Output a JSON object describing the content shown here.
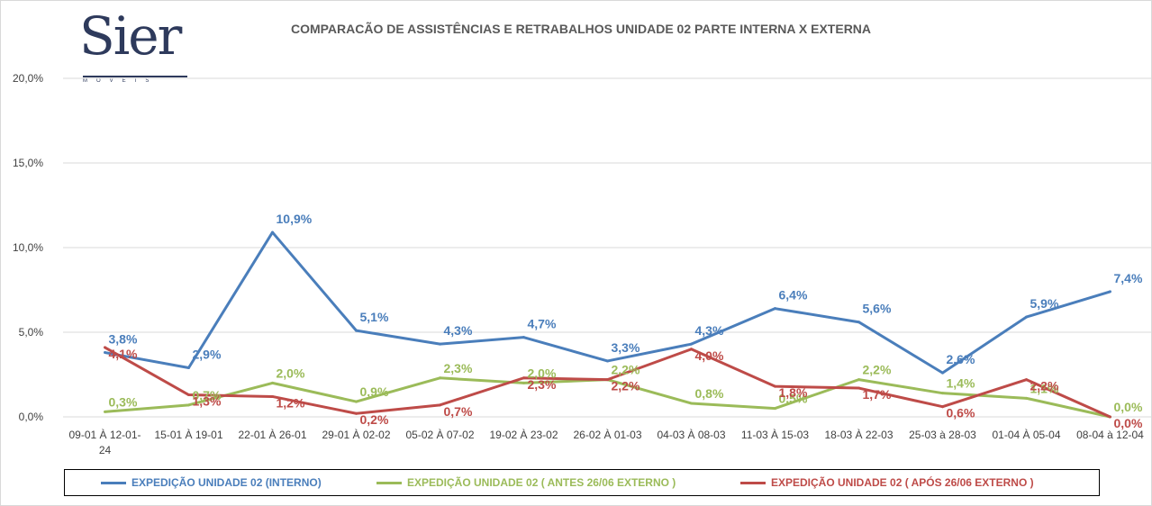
{
  "logo": {
    "text": "Sier",
    "subtext": "MÓVEIS"
  },
  "colors": {
    "interno": "#4a7ebb",
    "antes": "#9bbb59",
    "apos": "#be4b48",
    "grid": "#d9d9d9",
    "axis_text": "#404040"
  },
  "legend": {
    "interno": "EXPEDIÇÃO UNIDADE 02 (INTERNO)",
    "antes": "EXPEDIÇÃO UNIDADE 02 ( ANTES 26/06 EXTERNO )",
    "apos": "EXPEDIÇÃO UNIDADE 02 ( APÓS 26/06 EXTERNO )"
  },
  "chart_data": {
    "type": "line",
    "title": "COMPARACÃO DE ASSISTÊNCIAS E RETRABALHOS UNIDADE 02 PARTE INTERNA X EXTERNA",
    "categories": [
      "09-01 À 12-01-24",
      "15-01 À 19-01",
      "22-01 À 26-01",
      "29-01 À 02-02",
      "05-02 À 07-02",
      "19-02 À 23-02",
      "26-02 À 01-03",
      "04-03 À 08-03",
      "11-03 À 15-03",
      "18-03 À 22-03",
      "25-03 à 28-03",
      "01-04 À 05-04",
      "08-04 à 12-04"
    ],
    "y_ticks": [
      "0,0%",
      "5,0%",
      "10,0%",
      "15,0%",
      "20,0%"
    ],
    "ylim": [
      0,
      20
    ],
    "grid": true,
    "legend_position": "bottom",
    "series": [
      {
        "name": "EXPEDIÇÃO UNIDADE 02 (INTERNO)",
        "color": "#4a7ebb",
        "values": [
          3.8,
          2.9,
          10.9,
          5.1,
          4.3,
          4.7,
          3.3,
          4.3,
          6.4,
          5.6,
          2.6,
          5.9,
          7.4
        ],
        "labels": [
          "3,8%",
          "2,9%",
          "10,9%",
          "5,1%",
          "4,3%",
          "4,7%",
          "3,3%",
          "4,3%",
          "6,4%",
          "5,6%",
          "2,6%",
          "5,9%",
          "7,4%"
        ]
      },
      {
        "name": "EXPEDIÇÃO UNIDADE 02 ( ANTES 26/06 EXTERNO )",
        "color": "#9bbb59",
        "values": [
          0.3,
          0.7,
          2.0,
          0.9,
          2.3,
          2.0,
          2.2,
          0.8,
          0.5,
          2.2,
          1.4,
          1.1,
          0.0
        ],
        "labels": [
          "0,3%",
          "0,7%",
          "2,0%",
          "0,9%",
          "2,3%",
          "2,0%",
          "2,2%",
          "0,8%",
          "0,5%",
          "2,2%",
          "1,4%",
          "1,1%",
          "0,0%"
        ]
      },
      {
        "name": "EXPEDIÇÃO UNIDADE 02 ( APÓS 26/06 EXTERNO )",
        "color": "#be4b48",
        "values": [
          4.1,
          1.3,
          1.2,
          0.2,
          0.7,
          2.3,
          2.2,
          4.0,
          1.8,
          1.7,
          0.6,
          2.2,
          0.0
        ],
        "labels": [
          "4,1%",
          "1,3%",
          "1,2%",
          "0,2%",
          "0,7%",
          "2,3%",
          "2,2%",
          "4,0%",
          "1,8%",
          "1,7%",
          "0,6%",
          "2,2%",
          "0,0%"
        ]
      }
    ]
  }
}
